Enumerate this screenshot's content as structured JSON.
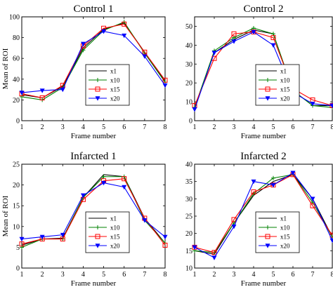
{
  "chart_data": [
    {
      "type": "line",
      "title": "Control 1",
      "xlabel": "Frame number",
      "ylabel": "Mean of ROI",
      "x": [
        1,
        2,
        3,
        4,
        5,
        6,
        7,
        8
      ],
      "xlim": [
        1,
        8
      ],
      "ylim": [
        0,
        100
      ],
      "yticks": [
        0,
        20,
        40,
        60,
        80,
        100
      ],
      "legend_position": "lower-center",
      "grid": false,
      "series": [
        {
          "name": "x1",
          "color": "#000000",
          "marker": "none",
          "values": [
            25,
            22,
            33,
            70,
            88,
            94,
            66,
            38
          ]
        },
        {
          "name": "x10",
          "color": "#008000",
          "marker": "plus",
          "values": [
            23,
            20,
            32,
            68,
            87,
            95,
            65,
            37
          ]
        },
        {
          "name": "x15",
          "color": "#ff0000",
          "marker": "square",
          "values": [
            26,
            22,
            34,
            72,
            89,
            93,
            66,
            39
          ]
        },
        {
          "name": "x20",
          "color": "#0000ff",
          "marker": "triangle-down",
          "values": [
            27,
            29,
            30,
            74,
            86,
            82,
            62,
            34
          ]
        }
      ]
    },
    {
      "type": "line",
      "title": "Control 2",
      "xlabel": "Frame number",
      "ylabel": "",
      "x": [
        1,
        2,
        3,
        4,
        5,
        6,
        7,
        8
      ],
      "xlim": [
        1,
        8
      ],
      "ylim": [
        0,
        55
      ],
      "yticks": [
        0,
        10,
        20,
        30,
        40,
        50
      ],
      "legend_position": "lower-center",
      "grid": false,
      "series": [
        {
          "name": "x1",
          "color": "#000000",
          "marker": "none",
          "values": [
            7,
            36,
            43,
            48,
            46,
            16,
            8,
            8
          ]
        },
        {
          "name": "x10",
          "color": "#008000",
          "marker": "plus",
          "values": [
            7,
            37,
            44,
            49,
            46,
            16,
            8,
            7
          ]
        },
        {
          "name": "x15",
          "color": "#ff0000",
          "marker": "square",
          "values": [
            8,
            33,
            46,
            47,
            44,
            17,
            11,
            8
          ]
        },
        {
          "name": "x20",
          "color": "#0000ff",
          "marker": "triangle-down",
          "values": [
            6,
            36,
            42,
            47,
            40,
            15,
            9,
            8
          ]
        }
      ]
    },
    {
      "type": "line",
      "title": "Infarcted 1",
      "xlabel": "Frame number",
      "ylabel": "Mean of ROI",
      "x": [
        1,
        2,
        3,
        4,
        5,
        6,
        7,
        8
      ],
      "xlim": [
        1,
        8
      ],
      "ylim": [
        0,
        25
      ],
      "yticks": [
        0,
        5,
        10,
        15,
        20,
        25
      ],
      "legend_position": "lower-center",
      "grid": false,
      "series": [
        {
          "name": "x1",
          "color": "#000000",
          "marker": "none",
          "values": [
            5.5,
            7,
            7.2,
            17,
            22.5,
            22,
            12,
            6
          ]
        },
        {
          "name": "x10",
          "color": "#008000",
          "marker": "plus",
          "values": [
            5,
            7,
            7,
            17,
            22,
            22,
            11.5,
            6
          ]
        },
        {
          "name": "x15",
          "color": "#ff0000",
          "marker": "square",
          "values": [
            5.8,
            7,
            7,
            16.5,
            21,
            21.5,
            12,
            5.5
          ]
        },
        {
          "name": "x20",
          "color": "#0000ff",
          "marker": "triangle-down",
          "values": [
            7,
            7.5,
            8,
            17.5,
            20.5,
            19.5,
            11.5,
            7.5
          ]
        }
      ]
    },
    {
      "type": "line",
      "title": "Infarcted 2",
      "xlabel": "Frame number",
      "ylabel": "",
      "x": [
        1,
        2,
        3,
        4,
        5,
        6,
        7,
        8
      ],
      "xlim": [
        1,
        8
      ],
      "ylim": [
        10,
        40
      ],
      "yticks": [
        10,
        15,
        20,
        25,
        30,
        35,
        40
      ],
      "legend_position": "lower-center",
      "grid": false,
      "series": [
        {
          "name": "x1",
          "color": "#000000",
          "marker": "none",
          "values": [
            15,
            14,
            23,
            31,
            35,
            37,
            30,
            19
          ]
        },
        {
          "name": "x10",
          "color": "#008000",
          "marker": "plus",
          "values": [
            15,
            14.5,
            23,
            31.5,
            36,
            37,
            29,
            19
          ]
        },
        {
          "name": "x15",
          "color": "#ff0000",
          "marker": "square",
          "values": [
            16,
            14.5,
            24,
            32,
            34,
            37,
            28,
            19.5
          ]
        },
        {
          "name": "x20",
          "color": "#0000ff",
          "marker": "triangle-down",
          "values": [
            16,
            13,
            22,
            35,
            34,
            37.5,
            30,
            18
          ]
        }
      ]
    }
  ]
}
